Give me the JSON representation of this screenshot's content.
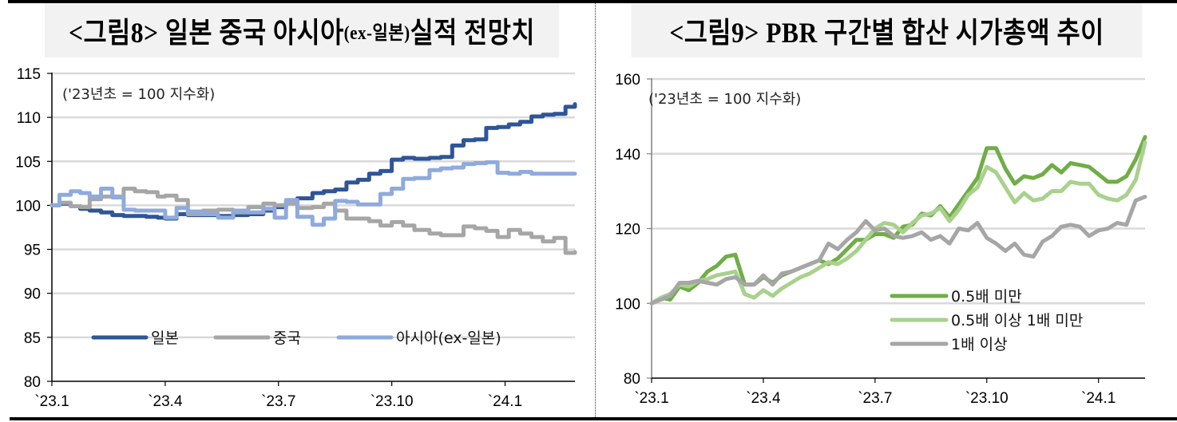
{
  "figures": [
    {
      "title_prefix": "<그림8> 일본 중국 아시아",
      "title_sub": "(ex-일본)",
      "title_suffix": " 실적 전망치",
      "note": "('23년초 = 100 지수화)"
    },
    {
      "title_prefix": "<그림9> PBR 구간별 합산 시가총액 추이",
      "title_sub": "",
      "title_suffix": "",
      "note": "('23년초 = 100 지수화)"
    }
  ],
  "chart_data": [
    {
      "type": "line",
      "title": "<그림8> 일본 중국 아시아(ex-일본) 실적 전망치",
      "annotation": "('23년초 = 100 지수화)",
      "xlabel": "",
      "ylabel": "",
      "ylim": [
        80,
        115
      ],
      "yticks": [
        80,
        85,
        90,
        95,
        100,
        105,
        110,
        115
      ],
      "xticks": [
        "`23.1",
        "`23.4",
        "`23.7",
        "`23.10",
        "`24.1"
      ],
      "xtick_month_index": [
        0,
        3,
        6,
        9,
        12
      ],
      "xlim_month_index": [
        0,
        13.85
      ],
      "grid": true,
      "legend_position": "inside-bottom",
      "step": true,
      "colors": {
        "일본": "#2f5597",
        "중국": "#a6a6a6",
        "아시아(ex-일본)": "#8faadc"
      },
      "series": [
        {
          "name": "일본",
          "x": [
            0,
            0.2,
            0.5,
            0.75,
            1.0,
            1.3,
            1.6,
            1.9,
            2.2,
            2.5,
            2.8,
            3.0,
            3.3,
            3.6,
            4.0,
            4.4,
            4.8,
            5.2,
            5.6,
            5.9,
            6.2,
            6.5,
            6.9,
            7.2,
            7.5,
            7.8,
            8.1,
            8.4,
            8.7,
            9.0,
            9.3,
            9.6,
            10.0,
            10.3,
            10.6,
            10.9,
            11.2,
            11.5,
            11.8,
            12.1,
            12.4,
            12.7,
            13.0,
            13.3,
            13.6,
            13.85
          ],
          "values": [
            100,
            100.2,
            99.9,
            99.6,
            99.4,
            99.2,
            98.9,
            98.8,
            98.8,
            98.7,
            98.6,
            98.5,
            99.0,
            98.9,
            98.9,
            98.8,
            98.9,
            99.0,
            99.4,
            99.8,
            100.3,
            100.8,
            101.4,
            101.6,
            101.8,
            102.6,
            102.9,
            103.6,
            103.9,
            105.2,
            105.4,
            105.3,
            105.4,
            105.5,
            106.8,
            107.4,
            107.5,
            108.8,
            108.9,
            109.2,
            109.5,
            110.1,
            110.3,
            110.4,
            111.2,
            111.5
          ]
        },
        {
          "name": "중국",
          "x": [
            0,
            0.2,
            0.5,
            0.75,
            1.0,
            1.3,
            1.6,
            1.9,
            2.2,
            2.5,
            2.8,
            3.0,
            3.3,
            3.6,
            4.0,
            4.4,
            4.8,
            5.2,
            5.6,
            5.9,
            6.2,
            6.5,
            6.9,
            7.2,
            7.5,
            7.8,
            8.1,
            8.4,
            8.7,
            9.0,
            9.3,
            9.6,
            10.0,
            10.3,
            10.6,
            10.9,
            11.2,
            11.5,
            11.8,
            12.1,
            12.4,
            12.7,
            13.0,
            13.3,
            13.6,
            13.85
          ],
          "values": [
            100,
            100.3,
            99.9,
            99.8,
            100.7,
            101.0,
            101.0,
            101.9,
            101.6,
            101.5,
            101.0,
            101.1,
            100.6,
            99.0,
            99.4,
            99.5,
            99.2,
            99.8,
            100.2,
            100.0,
            100.2,
            99.7,
            99.8,
            100.2,
            99.4,
            98.5,
            98.5,
            98.2,
            97.7,
            98.1,
            97.7,
            97.2,
            96.8,
            96.6,
            96.6,
            97.6,
            97.4,
            97.1,
            96.4,
            97.2,
            96.8,
            96.4,
            95.9,
            96.3,
            94.6,
            94.7
          ]
        },
        {
          "name": "아시아(ex-일본)",
          "x": [
            0,
            0.2,
            0.5,
            0.75,
            1.0,
            1.3,
            1.6,
            1.9,
            2.2,
            2.5,
            2.8,
            3.0,
            3.3,
            3.6,
            4.0,
            4.4,
            4.8,
            5.2,
            5.6,
            5.9,
            6.2,
            6.5,
            6.9,
            7.2,
            7.5,
            7.8,
            8.1,
            8.4,
            8.7,
            9.0,
            9.3,
            9.6,
            10.0,
            10.3,
            10.6,
            10.9,
            11.2,
            11.5,
            11.8,
            12.1,
            12.4,
            12.7,
            13.0,
            13.3,
            13.6,
            13.85
          ],
          "values": [
            100,
            101.2,
            101.6,
            101.4,
            101.0,
            101.9,
            100.9,
            99.5,
            99.4,
            99.4,
            99.4,
            98.6,
            99.7,
            99.3,
            99.0,
            98.6,
            99.4,
            99.2,
            99.6,
            98.6,
            100.6,
            98.7,
            97.8,
            98.5,
            100.5,
            100.4,
            100.1,
            100.1,
            101.3,
            101.9,
            103.0,
            103.1,
            104.0,
            104.2,
            104.3,
            104.7,
            104.8,
            104.9,
            103.7,
            103.6,
            103.8,
            103.6,
            103.6,
            103.6,
            103.6,
            103.6
          ]
        }
      ]
    },
    {
      "type": "line",
      "title": "<그림9> PBR 구간별 합산 시가총액 추이",
      "annotation": "('23년초 = 100 지수화)",
      "xlabel": "",
      "ylabel": "",
      "ylim": [
        80,
        160
      ],
      "yticks": [
        80,
        100,
        120,
        140,
        160
      ],
      "xticks": [
        "`23.1",
        "`23.4",
        "`23.7",
        "`23.10",
        "`24.1"
      ],
      "xtick_month_index": [
        0,
        3,
        6,
        9,
        12
      ],
      "xlim_month_index": [
        0,
        13.25
      ],
      "grid": true,
      "legend_position": "inside-bottom-right",
      "step": false,
      "colors": {
        "0.5배 미만": "#70ad47",
        "0.5배 이상 1배 미만": "#a9d18e",
        "1배 이상": "#a6a6a6"
      },
      "series": [
        {
          "name": "0.5배 미만",
          "x": [
            0,
            0.25,
            0.5,
            0.75,
            1.0,
            1.25,
            1.5,
            1.75,
            2.0,
            2.25,
            2.5,
            2.75,
            3.0,
            3.25,
            3.5,
            3.75,
            4.0,
            4.25,
            4.5,
            4.75,
            5.0,
            5.25,
            5.5,
            5.75,
            6.0,
            6.25,
            6.5,
            6.75,
            7.0,
            7.25,
            7.5,
            7.75,
            8.0,
            8.25,
            8.5,
            8.75,
            9.0,
            9.25,
            9.5,
            9.75,
            10.0,
            10.25,
            10.5,
            10.75,
            11.0,
            11.25,
            11.5,
            11.75,
            12.0,
            12.25,
            12.5,
            12.75,
            13.0,
            13.25
          ],
          "values": [
            100,
            101.5,
            101.0,
            104.5,
            103.5,
            105.5,
            108.5,
            110.0,
            112.5,
            113.0,
            105.0,
            105.0,
            107.0,
            105.5,
            107.5,
            108.5,
            109.5,
            110.5,
            111.5,
            110.5,
            112.0,
            114.5,
            117.0,
            117.0,
            118.5,
            118.5,
            117.5,
            120.5,
            121.0,
            124.0,
            123.5,
            126.0,
            123.0,
            126.5,
            130.0,
            133.5,
            141.5,
            141.5,
            136.0,
            132.0,
            134.0,
            133.5,
            134.5,
            137.0,
            135.0,
            137.5,
            137.0,
            136.5,
            134.5,
            132.5,
            132.5,
            134.0,
            138.5,
            144.5
          ]
        },
        {
          "name": "0.5배 이상 1배 미만",
          "x": [
            0,
            0.25,
            0.5,
            0.75,
            1.0,
            1.25,
            1.5,
            1.75,
            2.0,
            2.25,
            2.5,
            2.75,
            3.0,
            3.25,
            3.5,
            3.75,
            4.0,
            4.25,
            4.5,
            4.75,
            5.0,
            5.25,
            5.5,
            5.75,
            6.0,
            6.25,
            6.5,
            6.75,
            7.0,
            7.25,
            7.5,
            7.75,
            8.0,
            8.25,
            8.5,
            8.75,
            9.0,
            9.25,
            9.5,
            9.75,
            10.0,
            10.25,
            10.5,
            10.75,
            11.0,
            11.25,
            11.5,
            11.75,
            12.0,
            12.25,
            12.5,
            12.75,
            13.0,
            13.25
          ],
          "values": [
            100,
            101.5,
            102.5,
            105.0,
            104.5,
            106.0,
            106.5,
            107.5,
            108.0,
            108.5,
            102.5,
            101.5,
            103.5,
            102.0,
            104.0,
            105.5,
            107.0,
            108.0,
            109.5,
            111.0,
            110.5,
            112.0,
            114.0,
            117.0,
            120.0,
            121.5,
            121.0,
            119.0,
            121.5,
            123.5,
            124.0,
            125.5,
            122.0,
            125.0,
            129.0,
            131.0,
            136.5,
            135.0,
            131.0,
            127.0,
            129.5,
            127.5,
            128.0,
            130.0,
            130.0,
            132.5,
            132.0,
            132.0,
            129.0,
            128.0,
            127.5,
            129.0,
            133.0,
            143.0
          ]
        },
        {
          "name": "1배 이상",
          "x": [
            0,
            0.25,
            0.5,
            0.75,
            1.0,
            1.25,
            1.5,
            1.75,
            2.0,
            2.25,
            2.5,
            2.75,
            3.0,
            3.25,
            3.5,
            3.75,
            4.0,
            4.25,
            4.5,
            4.75,
            5.0,
            5.25,
            5.5,
            5.75,
            6.0,
            6.25,
            6.5,
            6.75,
            7.0,
            7.25,
            7.5,
            7.75,
            8.0,
            8.25,
            8.5,
            8.75,
            9.0,
            9.25,
            9.5,
            9.75,
            10.0,
            10.25,
            10.5,
            10.75,
            11.0,
            11.25,
            11.5,
            11.75,
            12.0,
            12.25,
            12.5,
            12.75,
            13.0,
            13.25
          ],
          "values": [
            100,
            101.0,
            102.0,
            105.5,
            105.5,
            106.0,
            105.5,
            105.0,
            106.5,
            107.0,
            105.0,
            105.0,
            107.5,
            105.0,
            108.0,
            108.5,
            109.5,
            110.5,
            111.5,
            116.0,
            114.5,
            117.0,
            119.0,
            122.0,
            119.5,
            120.0,
            118.0,
            117.5,
            118.0,
            119.0,
            117.0,
            118.0,
            116.0,
            120.0,
            119.5,
            121.5,
            117.5,
            116.0,
            114.0,
            116.0,
            113.0,
            112.5,
            116.5,
            118.0,
            120.5,
            121.0,
            120.5,
            118.0,
            119.5,
            120.0,
            121.5,
            121.0,
            127.5,
            128.5
          ]
        }
      ]
    }
  ]
}
